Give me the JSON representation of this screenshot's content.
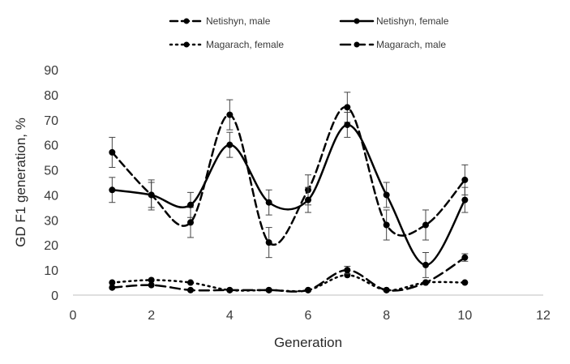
{
  "chart_data": {
    "type": "line",
    "title": "",
    "xlabel": "Generation",
    "ylabel": "GD F1 generation, %",
    "xlim": [
      0,
      12
    ],
    "ylim": [
      0,
      90
    ],
    "xticks": [
      0,
      2,
      4,
      6,
      8,
      10,
      12
    ],
    "yticks": [
      0,
      10,
      20,
      30,
      40,
      50,
      60,
      70,
      80,
      90
    ],
    "grid": false,
    "legend_position": "top",
    "x": [
      1,
      2,
      3,
      4,
      5,
      6,
      7,
      8,
      9,
      10
    ],
    "series": [
      {
        "name": "Netishyn, male",
        "line_style": "dashed",
        "color": "#000000",
        "values": [
          57,
          40,
          29,
          72,
          21,
          42,
          75,
          28,
          28,
          46
        ],
        "error": [
          6,
          6,
          6,
          6,
          6,
          6,
          6,
          6,
          6,
          6
        ]
      },
      {
        "name": "Netishyn, female",
        "line_style": "solid",
        "color": "#000000",
        "values": [
          42,
          40,
          36,
          60,
          37,
          38,
          68,
          40,
          12,
          38
        ],
        "error": [
          5,
          5,
          5,
          5,
          5,
          5,
          5,
          5,
          5,
          5
        ]
      },
      {
        "name": "Magarach, female",
        "line_style": "dotted",
        "color": "#000000",
        "values": [
          5,
          6,
          5,
          2,
          2,
          2,
          8,
          2,
          5,
          5
        ],
        "error": [
          0,
          0,
          0,
          0,
          0,
          0,
          0,
          0,
          0,
          0
        ]
      },
      {
        "name": "Magarach, male",
        "line_style": "longdash",
        "color": "#000000",
        "values": [
          3,
          4,
          2,
          2,
          2,
          2,
          10,
          2,
          5,
          15
        ],
        "error": [
          0,
          0,
          0,
          0,
          0,
          0,
          1.5,
          0,
          0,
          1.5
        ]
      }
    ]
  }
}
